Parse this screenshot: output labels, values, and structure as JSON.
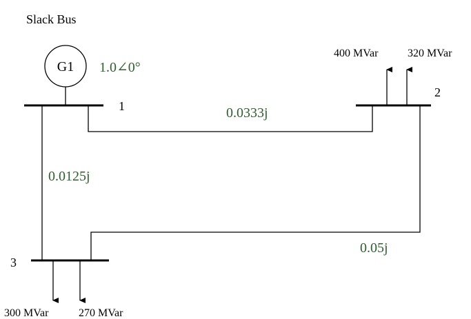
{
  "title": "Slack Bus",
  "generator": {
    "label": "G1",
    "voltage": "1.0∠0°"
  },
  "buses": [
    {
      "number": "1"
    },
    {
      "number": "2"
    },
    {
      "number": "3"
    }
  ],
  "lines": [
    {
      "from": "1",
      "to": "2",
      "impedance": "0.0333j"
    },
    {
      "from": "1",
      "to": "3",
      "impedance": "0.0125j"
    },
    {
      "from": "2",
      "to": "3",
      "impedance": "0.05j"
    }
  ],
  "loads": {
    "bus2": [
      "400 MVar",
      "320 MVar"
    ],
    "bus3": [
      "300 MVar",
      "270 MVar"
    ]
  },
  "colors": {
    "label_green": "#2e5e2e",
    "line_black": "#000000"
  }
}
